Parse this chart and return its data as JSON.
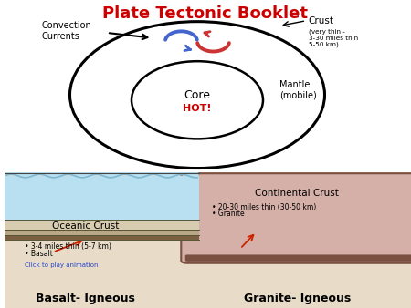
{
  "title": "Plate Tectonic Booklet",
  "title_color": "#cc0000",
  "title_fontsize": 13,
  "bg_color": "#ffffff",
  "top_labels": {
    "convection_currents": "Convection\nCurrents",
    "crust": "Crust",
    "crust_sub": "(very thin -\n3-30 miles thin\n5-50 km)",
    "mantle": "Mantle\n(mobile)",
    "core": "Core",
    "hot": "HOT!"
  },
  "bottom_labels": {
    "oceanic_crust": "Oceanic Crust",
    "continental_crust": "Continental Crust",
    "basalt_igneous": "Basalt- Igneous",
    "granite_igneous": "Granite- Igneous",
    "oc_bullet1": "• 3-4 miles thin (5-7 km)",
    "oc_bullet2": "• Basalt",
    "oc_click": "Click to play animation",
    "cc_bullet1": "• 20-30 miles thin (30-50 km)",
    "cc_bullet2": "• Granite"
  },
  "colors": {
    "ocean_water": "#b8e0f0",
    "ocean_water2": "#a0cce0",
    "oceanic_crust_top": "#d0c8b0",
    "oceanic_crust_mid": "#b8aa88",
    "oceanic_crust_bot": "#6e5a3a",
    "continental_fill": "#d4b0a8",
    "continental_edge": "#7a5040",
    "mantle_color": "#c8b090",
    "wave_color": "#80b8d0",
    "arrow_red": "#cc2200",
    "click_blue": "#2244cc"
  }
}
